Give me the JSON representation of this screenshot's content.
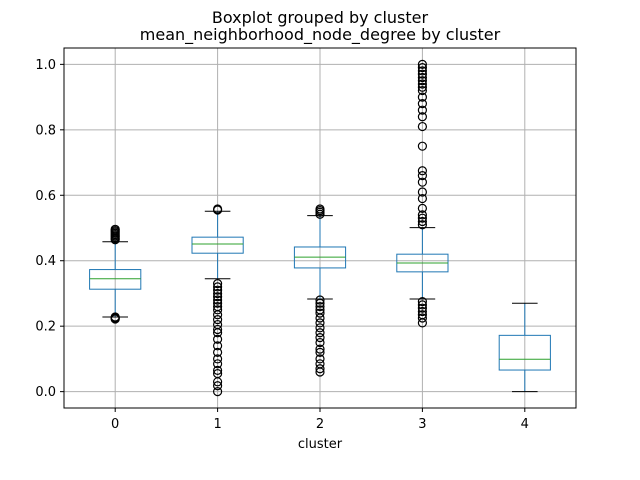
{
  "chart_data": {
    "type": "box",
    "suptitle": "Boxplot grouped by cluster",
    "title": "mean_neighborhood_node_degree by cluster",
    "xlabel": "cluster",
    "ylabel": "",
    "categories": [
      "0",
      "1",
      "2",
      "3",
      "4"
    ],
    "ylim": [
      -0.05,
      1.05
    ],
    "yticks": [
      0.0,
      0.2,
      0.4,
      0.6,
      0.8,
      1.0
    ],
    "ytick_labels": [
      "0.0",
      "0.2",
      "0.4",
      "0.6",
      "0.8",
      "1.0"
    ],
    "grid": true,
    "colors": {
      "box": "#1f77b4",
      "median": "#2ca02c",
      "flier": "#000000",
      "grid": "#b0b0b0"
    },
    "boxes": [
      {
        "category": "0",
        "whislo": 0.228,
        "q1": 0.313,
        "med": 0.345,
        "q3": 0.373,
        "whishi": 0.458,
        "fliers": [
          0.222,
          0.224,
          0.226,
          0.228,
          0.464,
          0.468,
          0.472,
          0.476,
          0.48,
          0.484,
          0.488,
          0.492,
          0.496
        ]
      },
      {
        "category": "1",
        "whislo": 0.345,
        "q1": 0.423,
        "med": 0.451,
        "q3": 0.472,
        "whishi": 0.551,
        "fliers": [
          0.0,
          0.018,
          0.03,
          0.055,
          0.065,
          0.085,
          0.1,
          0.12,
          0.14,
          0.16,
          0.18,
          0.19,
          0.205,
          0.22,
          0.235,
          0.25,
          0.26,
          0.27,
          0.28,
          0.29,
          0.3,
          0.31,
          0.32,
          0.33,
          0.555,
          0.558
        ]
      },
      {
        "category": "2",
        "whislo": 0.283,
        "q1": 0.378,
        "med": 0.411,
        "q3": 0.442,
        "whishi": 0.538,
        "fliers": [
          0.06,
          0.07,
          0.085,
          0.1,
          0.12,
          0.13,
          0.15,
          0.165,
          0.18,
          0.195,
          0.21,
          0.225,
          0.24,
          0.25,
          0.26,
          0.27,
          0.28,
          0.542,
          0.548,
          0.553,
          0.558
        ]
      },
      {
        "category": "3",
        "whislo": 0.283,
        "q1": 0.366,
        "med": 0.393,
        "q3": 0.42,
        "whishi": 0.501,
        "fliers": [
          0.21,
          0.225,
          0.235,
          0.245,
          0.255,
          0.265,
          0.275,
          0.51,
          0.52,
          0.53,
          0.54,
          0.56,
          0.59,
          0.61,
          0.64,
          0.66,
          0.675,
          0.75,
          0.81,
          0.84,
          0.86,
          0.88,
          0.9,
          0.92,
          0.93,
          0.94,
          0.95,
          0.96,
          0.97,
          0.98,
          0.99,
          1.0
        ]
      },
      {
        "category": "4",
        "whislo": 0.0,
        "q1": 0.066,
        "med": 0.099,
        "q3": 0.172,
        "whishi": 0.27,
        "fliers": []
      }
    ]
  }
}
